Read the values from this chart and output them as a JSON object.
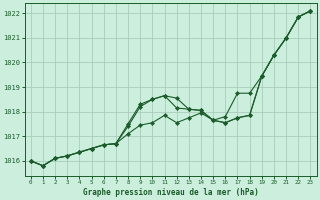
{
  "title": "Graphe pression niveau de la mer (hPa)",
  "bg_color": "#cceedd",
  "grid_color": "#aaccbb",
  "line_color": "#1a5c2a",
  "x_ticks": [
    0,
    1,
    2,
    3,
    4,
    5,
    6,
    7,
    8,
    9,
    10,
    11,
    12,
    13,
    14,
    15,
    16,
    17,
    18,
    19,
    20,
    21,
    22,
    23
  ],
  "y_ticks": [
    1016,
    1017,
    1018,
    1019,
    1020,
    1021,
    1022
  ],
  "ylim": [
    1015.4,
    1022.4
  ],
  "xlim": [
    -0.5,
    23.5
  ],
  "series": [
    [
      1016.0,
      1015.8,
      1016.1,
      1016.2,
      1016.35,
      1016.5,
      1016.65,
      1016.7,
      1017.5,
      1018.3,
      1018.5,
      1018.65,
      1018.55,
      1018.1,
      1018.05,
      1017.65,
      1017.55,
      1017.75,
      1017.85,
      1019.45,
      1020.3,
      1021.0,
      1021.85,
      1022.1
    ],
    [
      1016.0,
      1015.8,
      1016.1,
      1016.2,
      1016.35,
      1016.5,
      1016.65,
      1016.7,
      1017.1,
      1017.45,
      1017.55,
      1017.85,
      1017.55,
      1017.75,
      1017.95,
      1017.65,
      1017.55,
      1017.75,
      1017.85,
      1019.45,
      1020.3,
      1021.0,
      1021.85,
      1022.1
    ],
    [
      1016.0,
      1015.8,
      1016.1,
      1016.2,
      1016.35,
      1016.5,
      1016.65,
      1016.7,
      1017.4,
      1018.2,
      1018.5,
      1018.65,
      1018.15,
      1018.1,
      1018.05,
      1017.65,
      1017.8,
      1018.75,
      1018.75,
      1019.45,
      1020.3,
      1021.0,
      1021.85,
      1022.1
    ]
  ]
}
